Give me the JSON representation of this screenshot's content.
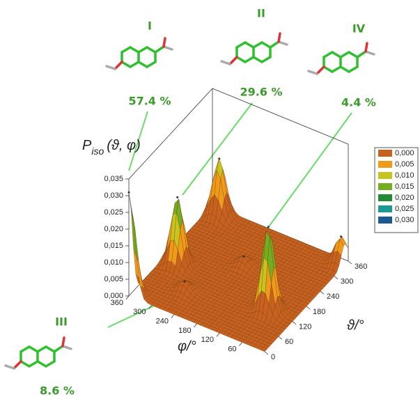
{
  "chart_data": {
    "type": "surface3d",
    "zlabel": {
      "symbol": "P",
      "subscript": "iso",
      "args": "(ϑ, φ)"
    },
    "xlabel": "φ/°",
    "ylabel": "ϑ/°",
    "xlim": [
      0,
      360
    ],
    "xticks": [
      60,
      120,
      180,
      240,
      300,
      360
    ],
    "ylim": [
      0,
      360
    ],
    "yticks": [
      0,
      60,
      120,
      180,
      240,
      300,
      360
    ],
    "zlim": [
      0,
      0.035
    ],
    "zticks": [
      {
        "value": 0,
        "label": "0,000"
      },
      {
        "value": 0.005,
        "label": "0,005"
      },
      {
        "value": 0.01,
        "label": "0,010"
      },
      {
        "value": 0.015,
        "label": "0,015"
      },
      {
        "value": 0.02,
        "label": "0,020"
      },
      {
        "value": 0.025,
        "label": "0,025"
      },
      {
        "value": 0.03,
        "label": "0,030"
      },
      {
        "value": 0.035,
        "label": "0,035"
      }
    ],
    "legend": {
      "levels": [
        {
          "value": 0,
          "label": "0,000"
        },
        {
          "value": 0.005,
          "label": "0,005"
        },
        {
          "value": 0.01,
          "label": "0,010"
        },
        {
          "value": 0.015,
          "label": "0,015"
        },
        {
          "value": 0.02,
          "label": "0,020"
        },
        {
          "value": 0.025,
          "label": "0,025"
        },
        {
          "value": 0.03,
          "label": "0,030"
        }
      ],
      "colors": [
        "#c8601e",
        "#f09a1c",
        "#c8c41e",
        "#74ae20",
        "#218a32",
        "#1b9a92",
        "#1a5a92"
      ]
    },
    "peaks": {
      "x": [
        360,
        323,
        329,
        66,
        10,
        191,
        261
      ],
      "y": [
        0,
        149,
        339,
        123,
        345,
        221,
        79
      ],
      "values": [
        0.031,
        0.02,
        0.017,
        0.025,
        0.008,
        0.003,
        0.003
      ]
    },
    "conformers": {
      "labels": [
        "I",
        "II",
        "III",
        "IV"
      ],
      "values": [
        57.4,
        29.6,
        8.6,
        4.4
      ],
      "value_labels": [
        "57.4 %",
        "29.6 %",
        "8.6 %",
        "4.4 %"
      ]
    }
  }
}
